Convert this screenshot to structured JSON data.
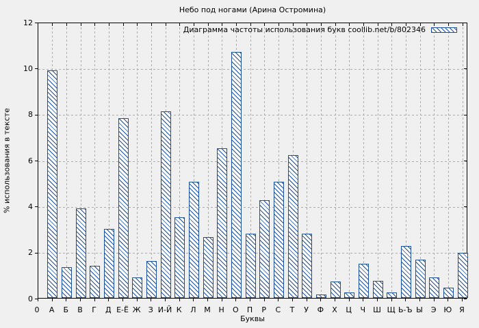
{
  "chart_data": {
    "type": "bar",
    "title": "Небо под ногами (Арина Остромина)",
    "legend_label": "Диаграмма частоты использования букв coollib.net/b/802346",
    "legend_position": "top-right-inside",
    "xlabel": "Буквы",
    "ylabel": "% использования в тексте",
    "x_origin_label": "0",
    "ylim": [
      0,
      12
    ],
    "ytick_labels": [
      "0",
      "2",
      "4",
      "6",
      "8",
      "10",
      "12"
    ],
    "grid": true,
    "bar_color": "#1a4f9c",
    "bar_fill": "hatched-diagonal",
    "background_color": "#f0f0f0",
    "categories": [
      "А",
      "Б",
      "В",
      "Г",
      "Д",
      "Е-Ё",
      "Ж",
      "З",
      "И-Й",
      "К",
      "Л",
      "М",
      "Н",
      "О",
      "П",
      "Р",
      "С",
      "Т",
      "У",
      "Ф",
      "Х",
      "Ц",
      "Ч",
      "Ш",
      "Щ",
      "Ь-Ъ",
      "Ы",
      "Э",
      "Ю",
      "Я"
    ],
    "values": [
      9.9,
      1.35,
      3.9,
      1.4,
      3.0,
      7.8,
      0.9,
      1.6,
      8.1,
      3.5,
      5.05,
      2.65,
      6.5,
      10.7,
      2.8,
      4.25,
      5.05,
      6.2,
      2.8,
      0.15,
      0.7,
      0.25,
      1.5,
      0.75,
      0.25,
      2.25,
      1.65,
      0.9,
      0.45,
      1.95
    ]
  }
}
